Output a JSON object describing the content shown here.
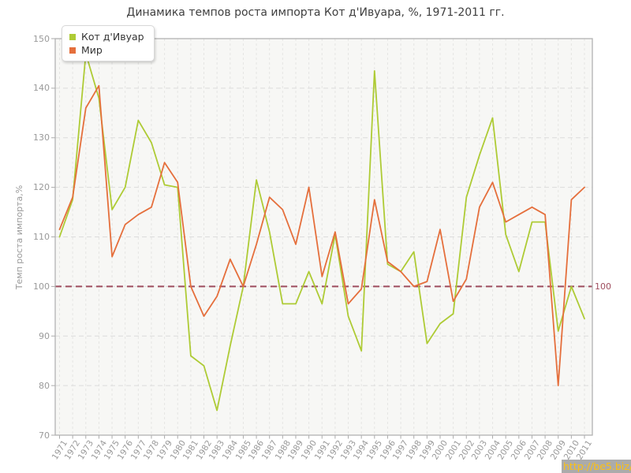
{
  "title": "Динамика темпов роста импорта Кот д'Ивуара, %, 1971-2011 гг.",
  "legend": {
    "items": [
      {
        "label": "Кот д'Ивуар",
        "color": "#aecb35"
      },
      {
        "label": "Мир",
        "color": "#e56f3c"
      }
    ]
  },
  "watermark": "http://be5.biz/",
  "chart_data": {
    "type": "line",
    "title": "Динамика темпов роста импорта Кот д'Ивуара, %, 1971-2011 гг.",
    "xlabel": "",
    "ylabel": "Темп роста импорта,%",
    "ylim": [
      70,
      150
    ],
    "y_ticks": [
      70,
      80,
      90,
      100,
      110,
      120,
      130,
      140,
      150
    ],
    "grid": true,
    "legend_position": "top-left",
    "reference_line": {
      "value": 100,
      "label": "100",
      "color": "#9e4d5e"
    },
    "x": [
      1971,
      1972,
      1973,
      1974,
      1975,
      1976,
      1977,
      1978,
      1979,
      1980,
      1981,
      1982,
      1983,
      1984,
      1985,
      1986,
      1987,
      1988,
      1989,
      1990,
      1991,
      1992,
      1993,
      1994,
      1995,
      1996,
      1997,
      1998,
      1999,
      2000,
      2001,
      2002,
      2003,
      2004,
      2005,
      2006,
      2007,
      2008,
      2009,
      2010,
      2011
    ],
    "series": [
      {
        "name": "Кот д'Ивуар",
        "color": "#aecb35",
        "values": [
          110,
          117.5,
          147,
          138,
          115.5,
          120,
          133.5,
          129,
          120.5,
          120,
          86,
          84,
          75,
          88,
          100,
          121.5,
          111,
          96.5,
          96.5,
          103,
          96.5,
          110.5,
          94,
          87,
          143.5,
          104.5,
          103,
          107,
          88.5,
          92.5,
          94.5,
          118,
          126.5,
          134,
          110.5,
          103,
          113,
          113,
          91,
          100,
          93.5
        ]
      },
      {
        "name": "Мир",
        "color": "#e56f3c",
        "values": [
          111.5,
          118,
          136,
          140.5,
          106,
          112.5,
          114.5,
          116,
          125,
          121,
          100,
          94,
          98,
          105.5,
          100,
          108.5,
          118,
          115.5,
          108.5,
          120,
          102,
          111,
          96.5,
          99.5,
          117.5,
          105,
          103,
          100,
          101,
          111.5,
          97,
          101.5,
          116,
          121,
          113,
          114.5,
          116,
          114.5,
          80,
          117.5,
          120
        ]
      }
    ]
  },
  "style": {
    "plot_bg": "#f7f7f5",
    "border": "#b2b2b2",
    "h_grid": "#dcdcdc",
    "v_grid": "#e5e5e3",
    "tick": "#aaaaaa"
  }
}
